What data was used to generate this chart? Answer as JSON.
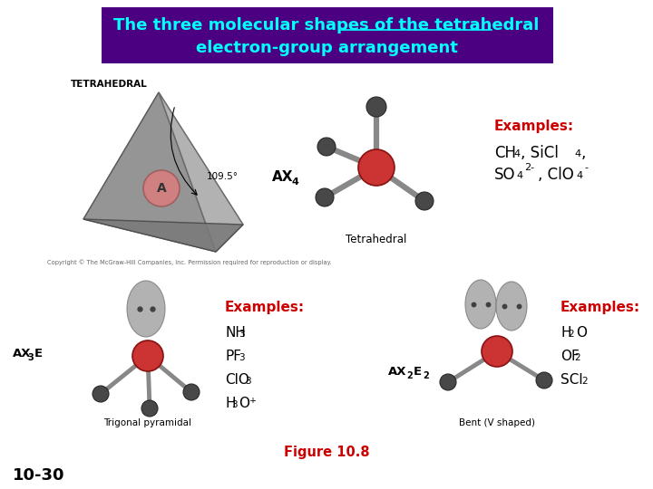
{
  "title_text1": "The three molecular shapes of the ",
  "title_text2": "tetrahedral",
  "title_text3": "\nelectron-group arrangement",
  "title_bg": "#4B0082",
  "title_color": "#00FFFF",
  "title_fontsize": 13,
  "bg_color": "#FFFFFF",
  "label_tetrahedral": "TETRAHEDRAL",
  "angle_label": "109.5°",
  "center_label": "A",
  "ax4_label": "AX",
  "ax4_sub": "4",
  "mol_label_tetrahedral": "Tetrahedral",
  "ax3e_label": "AX",
  "ax3e_sub": "3",
  "ax3e_suf": "E",
  "mol_label_trigonal": "Trigonal pyramidal",
  "ax2e2_label": "AX",
  "ax2e2_sub1": "2",
  "ax2e2_sub2": "E",
  "ax2e2_sub3": "2",
  "mol_label_bent": "Bent (V shaped)",
  "examples1_label": "Examples:",
  "examples1_line1": "CH",
  "examples1_line2": "SO",
  "examples2_label": "Examples:",
  "examples2_list": [
    "NH",
    "PF",
    "ClO",
    "H"
  ],
  "examples3_label": "Examples:",
  "examples3_list": [
    "H",
    "OF",
    "SCl"
  ],
  "copyright": "Copyright © The McGraw-Hill Companies, Inc. Permission required for reproduction or display.",
  "figure_label": "Figure 10.8",
  "slide_num": "10-30",
  "red": "#CC0000",
  "sphere_red": "#CC3333",
  "sphere_pink": "#D08080",
  "bond_gray": "#888888",
  "tetra_dark": "#686868",
  "tetra_mid": "#909090",
  "tetra_light": "#B8B8B8",
  "lone_gray": "#A8A8A8"
}
